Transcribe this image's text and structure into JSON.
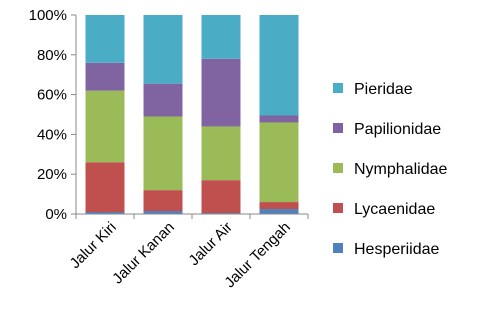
{
  "chart_data": {
    "type": "bar",
    "stacked": true,
    "percent": true,
    "categories": [
      "Jalur Kiri",
      "Jalur Kanan",
      "Jalur Air",
      "Jalur Tengah"
    ],
    "series": [
      {
        "name": "Hesperiidae",
        "color": "#4F81BD",
        "values": [
          1,
          1.5,
          0.5,
          2.5
        ]
      },
      {
        "name": "Lycaenidae",
        "color": "#C0504D",
        "values": [
          25,
          10.5,
          16.5,
          3.5
        ]
      },
      {
        "name": "Nymphalidae",
        "color": "#9BBB59",
        "values": [
          36,
          37,
          27,
          40
        ]
      },
      {
        "name": "Papilionidae",
        "color": "#8064A2",
        "values": [
          14,
          16.5,
          34,
          3.5
        ]
      },
      {
        "name": "Pieridae",
        "color": "#4BACC6",
        "values": [
          24,
          34.5,
          22,
          50.5
        ]
      }
    ],
    "ylim": [
      0,
      100
    ],
    "yticks": [
      "0%",
      "20%",
      "40%",
      "60%",
      "80%",
      "100%"
    ],
    "legend_position": "right",
    "legend_order": [
      "Pieridae",
      "Papilionidae",
      "Nymphalidae",
      "Lycaenidae",
      "Hesperiidae"
    ],
    "grid": false
  }
}
